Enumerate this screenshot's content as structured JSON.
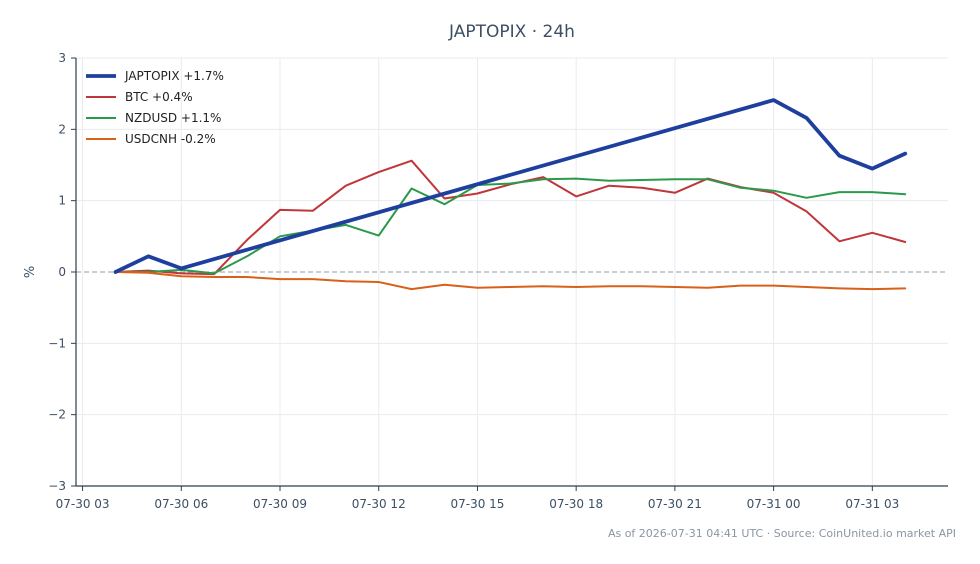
{
  "chart_data": {
    "type": "line",
    "title": "JAPTOPIX · 24h",
    "ylabel": "%",
    "xlabel": "",
    "x_ticks": [
      "07-30 03",
      "07-30 06",
      "07-30 09",
      "07-30 12",
      "07-30 15",
      "07-30 18",
      "07-30 21",
      "07-31 00",
      "07-31 03"
    ],
    "y_ticks": [
      "3",
      "2",
      "1",
      "0",
      "−1",
      "−2",
      "−3"
    ],
    "ylim": [
      -3,
      3
    ],
    "xlim": [
      "2026-07-30 02:48",
      "2026-07-31 05:18"
    ],
    "grid": true,
    "zero_line": true,
    "legend_position": "top-left",
    "series": [
      {
        "name": "JAPTOPIX +1.7%",
        "color": "#1f3f9f",
        "line_width": "bold",
        "points": [
          [
            "2026-07-30 04:00",
            0.0
          ],
          [
            "2026-07-30 05:00",
            0.22
          ],
          [
            "2026-07-30 06:00",
            0.05
          ],
          [
            "2026-07-31 00:00",
            2.41
          ],
          [
            "2026-07-31 01:00",
            2.16
          ],
          [
            "2026-07-31 02:00",
            1.63
          ],
          [
            "2026-07-31 03:00",
            1.45
          ],
          [
            "2026-07-31 04:00",
            1.66
          ]
        ]
      },
      {
        "name": "BTC +0.4%",
        "color": "#c0363a",
        "line_width": "normal",
        "points": [
          [
            "2026-07-30 04:00",
            0.0
          ],
          [
            "2026-07-30 05:00",
            0.02
          ],
          [
            "2026-07-30 06:00",
            -0.02
          ],
          [
            "2026-07-30 07:00",
            -0.03
          ],
          [
            "2026-07-30 08:00",
            0.45
          ],
          [
            "2026-07-30 09:00",
            0.87
          ],
          [
            "2026-07-30 10:00",
            0.86
          ],
          [
            "2026-07-30 11:00",
            1.21
          ],
          [
            "2026-07-30 12:00",
            1.4
          ],
          [
            "2026-07-30 13:00",
            1.56
          ],
          [
            "2026-07-30 14:00",
            1.03
          ],
          [
            "2026-07-30 15:00",
            1.1
          ],
          [
            "2026-07-30 16:00",
            1.23
          ],
          [
            "2026-07-30 17:00",
            1.33
          ],
          [
            "2026-07-30 18:00",
            1.06
          ],
          [
            "2026-07-30 19:00",
            1.21
          ],
          [
            "2026-07-30 20:00",
            1.18
          ],
          [
            "2026-07-30 21:00",
            1.11
          ],
          [
            "2026-07-30 22:00",
            1.31
          ],
          [
            "2026-07-30 23:00",
            1.19
          ],
          [
            "2026-07-31 00:00",
            1.11
          ],
          [
            "2026-07-31 01:00",
            0.85
          ],
          [
            "2026-07-31 02:00",
            0.43
          ],
          [
            "2026-07-31 03:00",
            0.55
          ],
          [
            "2026-07-31 04:00",
            0.42
          ]
        ]
      },
      {
        "name": "NZDUSD +1.1%",
        "color": "#2a9a4a",
        "line_width": "normal",
        "points": [
          [
            "2026-07-30 04:00",
            0.0
          ],
          [
            "2026-07-30 05:00",
            0.0
          ],
          [
            "2026-07-30 06:00",
            0.03
          ],
          [
            "2026-07-30 07:00",
            -0.02
          ],
          [
            "2026-07-30 08:00",
            0.22
          ],
          [
            "2026-07-30 09:00",
            0.5
          ],
          [
            "2026-07-30 10:00",
            0.58
          ],
          [
            "2026-07-30 11:00",
            0.66
          ],
          [
            "2026-07-30 12:00",
            0.51
          ],
          [
            "2026-07-30 13:00",
            1.17
          ],
          [
            "2026-07-30 14:00",
            0.95
          ],
          [
            "2026-07-30 15:00",
            1.22
          ],
          [
            "2026-07-30 16:00",
            1.24
          ],
          [
            "2026-07-30 17:00",
            1.3
          ],
          [
            "2026-07-30 18:00",
            1.31
          ],
          [
            "2026-07-30 19:00",
            1.28
          ],
          [
            "2026-07-30 20:00",
            1.29
          ],
          [
            "2026-07-30 21:00",
            1.3
          ],
          [
            "2026-07-30 22:00",
            1.3
          ],
          [
            "2026-07-30 23:00",
            1.18
          ],
          [
            "2026-07-31 00:00",
            1.14
          ],
          [
            "2026-07-31 01:00",
            1.04
          ],
          [
            "2026-07-31 02:00",
            1.12
          ],
          [
            "2026-07-31 03:00",
            1.12
          ],
          [
            "2026-07-31 04:00",
            1.09
          ]
        ]
      },
      {
        "name": "USDCNH -0.2%",
        "color": "#d9601a",
        "line_width": "normal",
        "points": [
          [
            "2026-07-30 04:00",
            0.0
          ],
          [
            "2026-07-30 05:00",
            -0.01
          ],
          [
            "2026-07-30 06:00",
            -0.06
          ],
          [
            "2026-07-30 07:00",
            -0.07
          ],
          [
            "2026-07-30 08:00",
            -0.07
          ],
          [
            "2026-07-30 09:00",
            -0.1
          ],
          [
            "2026-07-30 10:00",
            -0.1
          ],
          [
            "2026-07-30 11:00",
            -0.13
          ],
          [
            "2026-07-30 12:00",
            -0.14
          ],
          [
            "2026-07-30 13:00",
            -0.24
          ],
          [
            "2026-07-30 14:00",
            -0.18
          ],
          [
            "2026-07-30 15:00",
            -0.22
          ],
          [
            "2026-07-30 16:00",
            -0.21
          ],
          [
            "2026-07-30 17:00",
            -0.2
          ],
          [
            "2026-07-30 18:00",
            -0.21
          ],
          [
            "2026-07-30 19:00",
            -0.2
          ],
          [
            "2026-07-30 20:00",
            -0.2
          ],
          [
            "2026-07-30 21:00",
            -0.21
          ],
          [
            "2026-07-30 22:00",
            -0.22
          ],
          [
            "2026-07-30 23:00",
            -0.19
          ],
          [
            "2026-07-31 00:00",
            -0.19
          ],
          [
            "2026-07-31 01:00",
            -0.21
          ],
          [
            "2026-07-31 02:00",
            -0.23
          ],
          [
            "2026-07-31 03:00",
            -0.24
          ],
          [
            "2026-07-31 04:00",
            -0.23
          ]
        ]
      }
    ]
  },
  "footer": {
    "note": "As of 2026-07-31 04:41 UTC · Source: CoinUnited.io market API"
  },
  "colors": {
    "text": "#3d4f63",
    "grid": "#e8ebef",
    "zero_line": "#8f9db0",
    "axis": "#2d3e50"
  }
}
